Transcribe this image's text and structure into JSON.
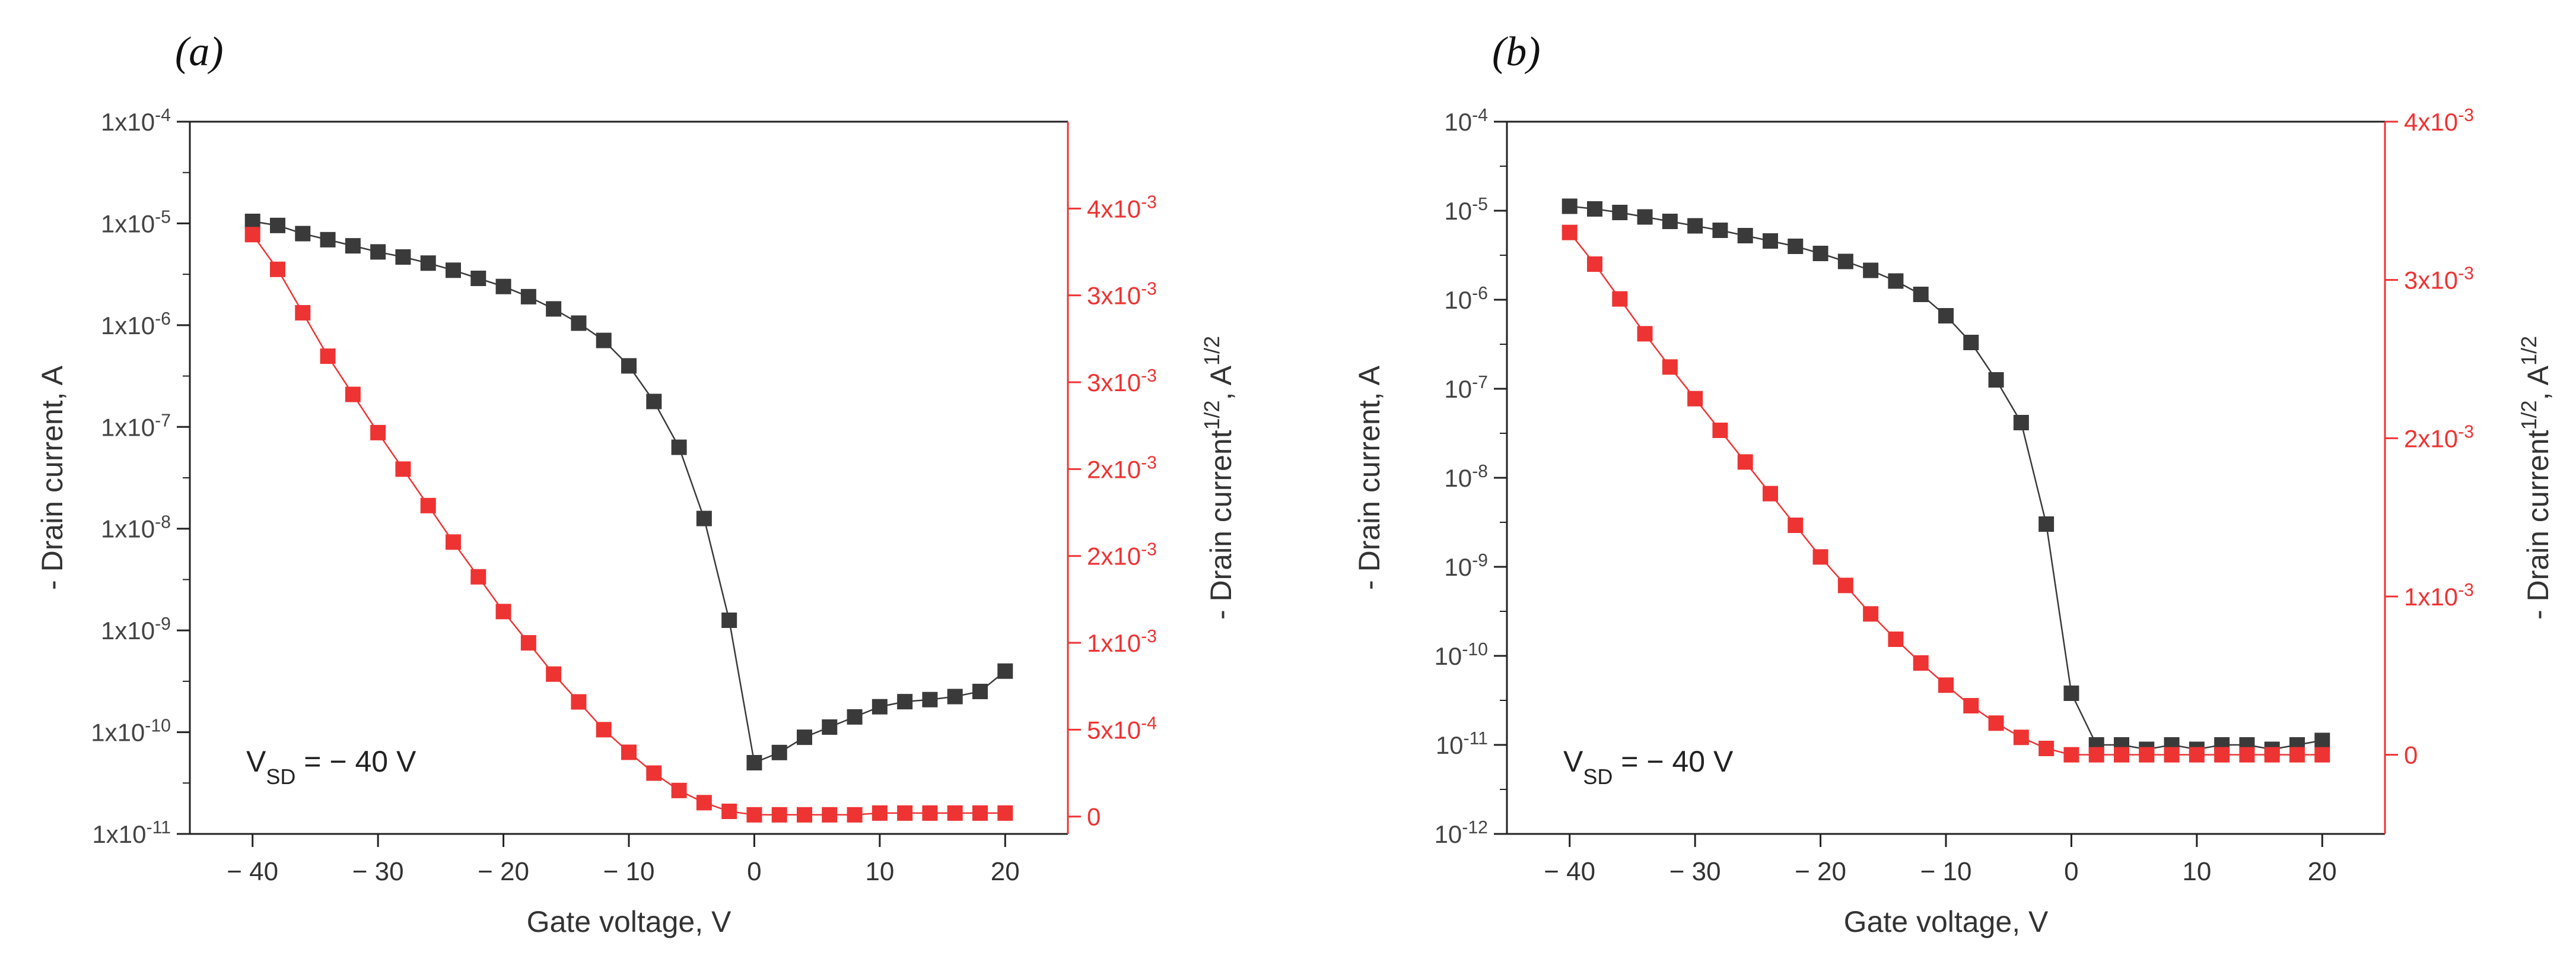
{
  "chart_data": [
    {
      "type": "scatter",
      "panel_label": "(a)",
      "xlabel": "Gate voltage, V",
      "ylabel": "- Drain current, A",
      "ylabel_right": {
        "main": "- Drain current",
        "sup": "1/2",
        "unit": ", A",
        "unit_sup": "1/2"
      },
      "annotation": {
        "main": "V",
        "sub": "SD",
        "rest": " = − 40 V"
      },
      "xlim": [
        -45,
        25
      ],
      "ylim_left_log10": [
        -11,
        -4
      ],
      "ylim_right": [
        -0.0001,
        0.004
      ],
      "x_ticks": [
        -40,
        -30,
        -20,
        -10,
        0,
        10,
        20
      ],
      "x_tick_labels": [
        "− 40",
        "− 30",
        "− 20",
        "− 10",
        "0",
        "10",
        "20"
      ],
      "left_ticks": [
        {
          "exp": -4,
          "base": "1x10",
          "sup": "-4"
        },
        {
          "exp": -5,
          "base": "1x10",
          "sup": "-5"
        },
        {
          "exp": -6,
          "base": "1x10",
          "sup": "-6"
        },
        {
          "exp": -7,
          "base": "1x10",
          "sup": "-7"
        },
        {
          "exp": -8,
          "base": "1x10",
          "sup": "-8"
        },
        {
          "exp": -9,
          "base": "1x10",
          "sup": "-9"
        },
        {
          "exp": -10,
          "base": "1x10",
          "sup": "-10"
        },
        {
          "exp": -11,
          "base": "1x10",
          "sup": "-11"
        }
      ],
      "right_ticks": [
        {
          "value": 0,
          "base": "0",
          "sup": ""
        },
        {
          "value": 0.0005,
          "base": "5x10",
          "sup": "-4"
        },
        {
          "value": 0.001,
          "base": "1x10",
          "sup": "-3"
        },
        {
          "value": 0.0015,
          "base": "2x10",
          "sup": "-3"
        },
        {
          "value": 0.002,
          "base": "2x10",
          "sup": "-3"
        },
        {
          "value": 0.0025,
          "base": "3x10",
          "sup": "-3"
        },
        {
          "value": 0.003,
          "base": "3x10",
          "sup": "-3"
        },
        {
          "value": 0.0035,
          "base": "4x10",
          "sup": "-3"
        }
      ],
      "series": [
        {
          "name": "- Drain current (log scale, left axis)",
          "color": "#3a3a3a",
          "axis": "left",
          "x": [
            -40,
            -38,
            -36,
            -34,
            -32,
            -30,
            -28,
            -26,
            -24,
            -22,
            -20,
            -18,
            -16,
            -14,
            -12,
            -10,
            -8,
            -6,
            -4,
            -2,
            0,
            2,
            4,
            6,
            8,
            10,
            12,
            14,
            16,
            18,
            20
          ],
          "y_log10": [
            -4.98,
            -5.02,
            -5.1,
            -5.16,
            -5.22,
            -5.28,
            -5.33,
            -5.39,
            -5.46,
            -5.54,
            -5.62,
            -5.72,
            -5.84,
            -5.98,
            -6.15,
            -6.4,
            -6.75,
            -7.2,
            -7.9,
            -8.9,
            -10.3,
            -10.2,
            -10.05,
            -9.95,
            -9.85,
            -9.75,
            -9.7,
            -9.68,
            -9.65,
            -9.6,
            -9.4
          ]
        },
        {
          "name": "- Drain current^1/2 (linear, right axis)",
          "color": "#ee3333",
          "axis": "right",
          "x": [
            -40,
            -38,
            -36,
            -34,
            -32,
            -30,
            -28,
            -26,
            -24,
            -22,
            -20,
            -18,
            -16,
            -14,
            -12,
            -10,
            -8,
            -6,
            -4,
            -2,
            0,
            2,
            4,
            6,
            8,
            10,
            12,
            14,
            16,
            18,
            20
          ],
          "y": [
            0.00335,
            0.00315,
            0.0029,
            0.00265,
            0.00243,
            0.00221,
            0.002,
            0.00179,
            0.00158,
            0.00138,
            0.00118,
            0.001,
            0.00082,
            0.00066,
            0.0005,
            0.00037,
            0.00025,
            0.00015,
            8e-05,
            3e-05,
            1e-05,
            1e-05,
            1e-05,
            1e-05,
            1e-05,
            2e-05,
            2e-05,
            2e-05,
            2e-05,
            2e-05,
            2e-05
          ]
        }
      ]
    },
    {
      "type": "scatter",
      "panel_label": "(b)",
      "xlabel": "Gate voltage, V",
      "ylabel": "- Drain current, A",
      "ylabel_right": {
        "main": "- Drain current",
        "sup": "1/2",
        "unit": ", A",
        "unit_sup": "1/2"
      },
      "annotation": {
        "main": "V",
        "sub": "SD",
        "rest": " = − 40 V"
      },
      "xlim": [
        -45,
        25
      ],
      "ylim_left_log10": [
        -12,
        -4
      ],
      "ylim_right": [
        -0.0005,
        0.004
      ],
      "x_ticks": [
        -40,
        -30,
        -20,
        -10,
        0,
        10,
        20
      ],
      "x_tick_labels": [
        "− 40",
        "− 30",
        "− 20",
        "− 10",
        "0",
        "10",
        "20"
      ],
      "left_ticks": [
        {
          "exp": -4,
          "base": "10",
          "sup": "-4"
        },
        {
          "exp": -5,
          "base": "10",
          "sup": "-5"
        },
        {
          "exp": -6,
          "base": "10",
          "sup": "-6"
        },
        {
          "exp": -7,
          "base": "10",
          "sup": "-7"
        },
        {
          "exp": -8,
          "base": "10",
          "sup": "-8"
        },
        {
          "exp": -9,
          "base": "10",
          "sup": "-9"
        },
        {
          "exp": -10,
          "base": "10",
          "sup": "-10"
        },
        {
          "exp": -11,
          "base": "10",
          "sup": "-11"
        },
        {
          "exp": -12,
          "base": "10",
          "sup": "-12"
        }
      ],
      "right_ticks": [
        {
          "value": 0,
          "base": "0",
          "sup": ""
        },
        {
          "value": 0.001,
          "base": "1x10",
          "sup": "-3"
        },
        {
          "value": 0.002,
          "base": "2x10",
          "sup": "-3"
        },
        {
          "value": 0.003,
          "base": "3x10",
          "sup": "-3"
        },
        {
          "value": 0.004,
          "base": "4x10",
          "sup": "-3"
        }
      ],
      "series": [
        {
          "name": "- Drain current (log scale, left axis)",
          "color": "#3a3a3a",
          "axis": "left",
          "x": [
            -40,
            -38,
            -36,
            -34,
            -32,
            -30,
            -28,
            -26,
            -24,
            -22,
            -20,
            -18,
            -16,
            -14,
            -12,
            -10,
            -8,
            -6,
            -4,
            -2,
            0,
            2,
            4,
            6,
            8,
            10,
            12,
            14,
            16,
            18,
            20
          ],
          "y_log10": [
            -4.95,
            -4.98,
            -5.02,
            -5.07,
            -5.12,
            -5.17,
            -5.22,
            -5.28,
            -5.34,
            -5.4,
            -5.48,
            -5.57,
            -5.67,
            -5.79,
            -5.94,
            -6.18,
            -6.48,
            -6.9,
            -7.38,
            -8.52,
            -10.42,
            -11.0,
            -11.0,
            -11.05,
            -11.0,
            -11.05,
            -11.0,
            -11.0,
            -11.05,
            -11.0,
            -10.95
          ],
          "y_log10_adjusted_note": ""
        },
        {
          "name": "- Drain current^1/2 (linear, right axis)",
          "color": "#ee3333",
          "axis": "right",
          "x": [
            -40,
            -38,
            -36,
            -34,
            -32,
            -30,
            -28,
            -26,
            -24,
            -22,
            -20,
            -18,
            -16,
            -14,
            -12,
            -10,
            -8,
            -6,
            -4,
            -2,
            0,
            2,
            4,
            6,
            8,
            10,
            12,
            14,
            16,
            18,
            20
          ],
          "y": [
            0.0033,
            0.0031,
            0.00288,
            0.00266,
            0.00245,
            0.00225,
            0.00205,
            0.00185,
            0.00165,
            0.00145,
            0.00125,
            0.00107,
            0.00089,
            0.00073,
            0.00058,
            0.00044,
            0.00031,
            0.0002,
            0.00011,
            4e-05,
            0.0,
            0.0,
            0.0,
            0.0,
            0.0,
            0.0,
            0.0,
            0.0,
            0.0,
            0.0,
            0.0
          ]
        }
      ]
    }
  ]
}
